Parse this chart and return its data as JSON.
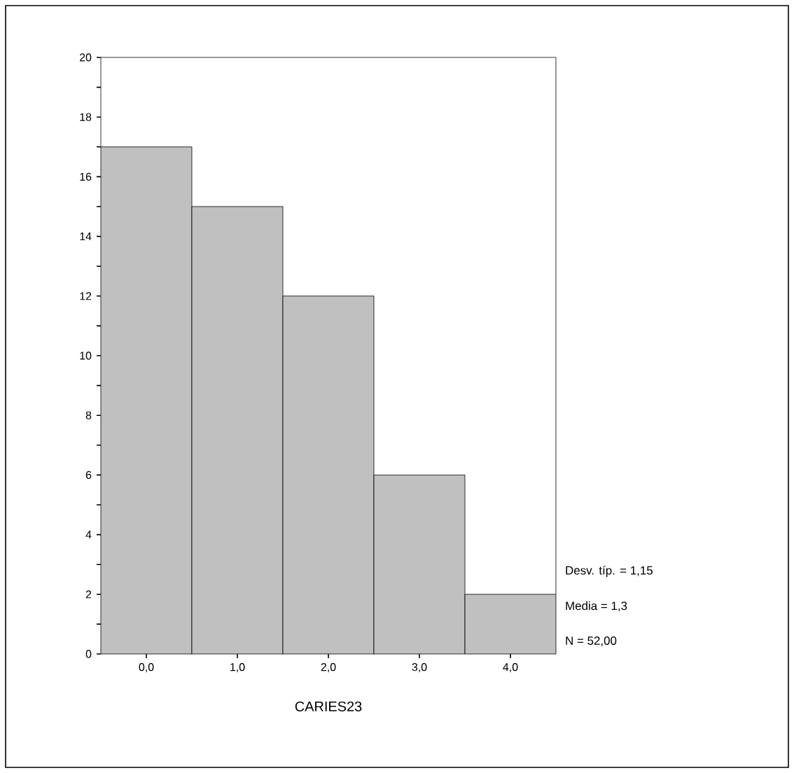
{
  "chart_data": {
    "type": "histogram",
    "xlabel": "CARIES23",
    "bins": [
      -0.5,
      0.5,
      1.5,
      2.5,
      3.5,
      4.5
    ],
    "values": [
      17,
      15,
      12,
      6,
      2
    ],
    "color": "#c0c0c0",
    "xlim": [
      -0.5,
      4.5
    ],
    "xticks": [
      {
        "value": 0,
        "label": "0,0"
      },
      {
        "value": 1,
        "label": "1,0"
      },
      {
        "value": 2,
        "label": "2,0"
      },
      {
        "value": 3,
        "label": "3,0"
      },
      {
        "value": 4,
        "label": "4,0"
      }
    ],
    "ylim": [
      0,
      20
    ],
    "yticks": [
      0,
      {
        "value": 1,
        "label": null
      },
      2,
      {
        "value": 3,
        "label": null
      },
      4,
      {
        "value": 5,
        "label": null
      },
      6,
      {
        "value": 7,
        "label": null
      },
      8,
      {
        "value": 9,
        "label": null
      },
      10,
      {
        "value": 11,
        "label": null
      },
      12,
      {
        "value": 13,
        "label": null
      },
      14,
      {
        "value": 15,
        "label": null
      },
      16,
      {
        "value": 17,
        "label": null
      },
      18,
      {
        "value": 19,
        "label": null
      },
      20
    ],
    "grid": false,
    "annotations": [
      "Desv. típ. = 1,15",
      "Media = 1,3",
      "N = 52,00"
    ]
  }
}
